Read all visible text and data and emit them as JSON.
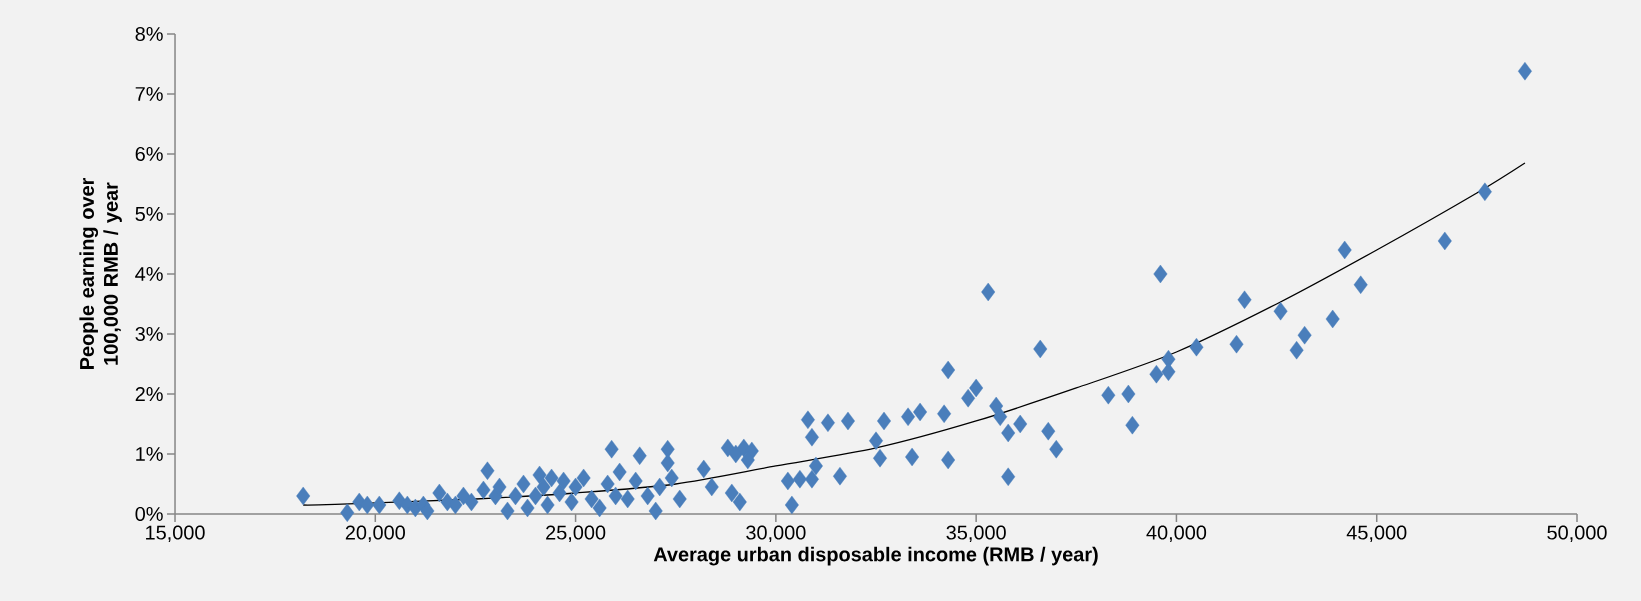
{
  "chart_data": {
    "type": "scatter",
    "xlabel": "Average urban disposable income (RMB / year)",
    "ylabel": "People earning over 100,000 RMB / year",
    "xlim": [
      15000,
      50000
    ],
    "ylim": [
      0,
      8
    ],
    "xticks": [
      {
        "value": 15000,
        "label": "15,000"
      },
      {
        "value": 20000,
        "label": "20,000"
      },
      {
        "value": 25000,
        "label": "25,000"
      },
      {
        "value": 30000,
        "label": "30,000"
      },
      {
        "value": 35000,
        "label": "35,000"
      },
      {
        "value": 40000,
        "label": "40,000"
      },
      {
        "value": 45000,
        "label": "45,000"
      },
      {
        "value": 50000,
        "label": "50,000"
      }
    ],
    "yticks": [
      {
        "value": 0,
        "label": "0%"
      },
      {
        "value": 1,
        "label": "1%"
      },
      {
        "value": 2,
        "label": "2%"
      },
      {
        "value": 3,
        "label": "3%"
      },
      {
        "value": 4,
        "label": "4%"
      },
      {
        "value": 5,
        "label": "5%"
      },
      {
        "value": 6,
        "label": "6%"
      },
      {
        "value": 7,
        "label": "7%"
      },
      {
        "value": 8,
        "label": "8%"
      }
    ],
    "series": [
      {
        "color": "#4a7ebb",
        "marker": "diamond",
        "x": [
          18200,
          19300,
          19600,
          19800,
          20100,
          20600,
          20800,
          21000,
          21200,
          21300,
          21600,
          21800,
          22000,
          22200,
          22400,
          22700,
          22800,
          23000,
          23100,
          23300,
          23500,
          23700,
          23800,
          24000,
          24100,
          24200,
          24300,
          24400,
          24600,
          24700,
          24900,
          25000,
          25200,
          25400,
          25600,
          25800,
          25900,
          26000,
          26100,
          26300,
          26500,
          26600,
          26800,
          27000,
          27100,
          27300,
          27300,
          27400,
          27600,
          28200,
          28400,
          28800,
          28900,
          29000,
          29100,
          29200,
          29400,
          29300,
          30300,
          30400,
          30600,
          30800,
          30900,
          30900,
          31000,
          31300,
          31600,
          31800,
          32500,
          32600,
          32700,
          33300,
          33400,
          33600,
          34200,
          34300,
          34300,
          34800,
          35000,
          35300,
          35500,
          35600,
          35800,
          35800,
          36100,
          36600,
          36800,
          37000,
          38300,
          38800,
          38900,
          39500,
          39600,
          39800,
          39800,
          40500,
          41500,
          41700,
          42600,
          43000,
          43200,
          43900,
          44200,
          44600,
          46700,
          47700,
          48700
        ],
        "values": [
          0.3,
          0.02,
          0.2,
          0.15,
          0.15,
          0.22,
          0.15,
          0.1,
          0.15,
          0.05,
          0.35,
          0.2,
          0.15,
          0.3,
          0.2,
          0.4,
          0.72,
          0.3,
          0.45,
          0.05,
          0.3,
          0.5,
          0.1,
          0.3,
          0.65,
          0.45,
          0.15,
          0.6,
          0.35,
          0.55,
          0.2,
          0.45,
          0.6,
          0.25,
          0.1,
          0.5,
          1.08,
          0.3,
          0.7,
          0.25,
          0.55,
          0.97,
          0.3,
          0.05,
          0.45,
          1.08,
          0.85,
          0.6,
          0.25,
          0.75,
          0.45,
          1.1,
          0.35,
          1.0,
          0.2,
          1.1,
          1.05,
          0.9,
          0.55,
          0.15,
          0.58,
          1.57,
          1.28,
          0.58,
          0.8,
          1.52,
          0.63,
          1.55,
          1.22,
          0.93,
          1.55,
          1.62,
          0.95,
          1.7,
          1.67,
          2.4,
          0.9,
          1.93,
          2.1,
          3.7,
          1.8,
          1.62,
          1.35,
          0.62,
          1.5,
          2.75,
          1.38,
          1.08,
          1.98,
          2.0,
          1.48,
          2.33,
          4.0,
          2.58,
          2.37,
          2.78,
          2.83,
          3.57,
          3.38,
          2.73,
          2.98,
          3.25,
          4.4,
          3.82,
          4.55,
          5.37,
          7.38
        ]
      },
      {
        "type": "line",
        "color": "#000000",
        "marker": "none",
        "x": [
          18200,
          19000,
          22500,
          25000,
          27500,
          30000,
          32500,
          35000,
          37500,
          40000,
          42500,
          45000,
          47500,
          48700
        ],
        "values": [
          0.15,
          0.16,
          0.25,
          0.35,
          0.5,
          0.8,
          1.1,
          1.55,
          2.1,
          2.7,
          3.5,
          4.4,
          5.35,
          5.85
        ]
      }
    ]
  }
}
